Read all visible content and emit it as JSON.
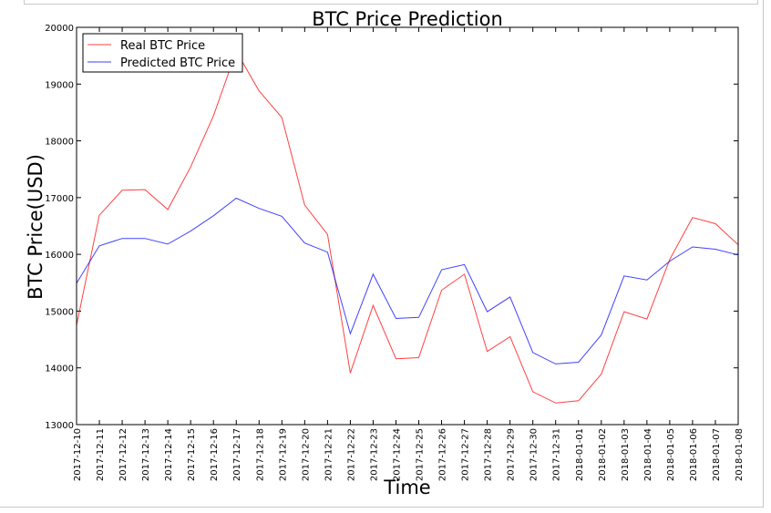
{
  "chart_data": {
    "type": "line",
    "title": "BTC Price Prediction",
    "xlabel": "Time",
    "ylabel": "BTC Price(USD)",
    "ylim": [
      13000,
      20000
    ],
    "yticks": [
      13000,
      14000,
      15000,
      16000,
      17000,
      18000,
      19000,
      20000
    ],
    "legend_position": "top-left",
    "grid": false,
    "categories": [
      "2017-12-10",
      "2017-12-11",
      "2017-12-12",
      "2017-12-13",
      "2017-12-14",
      "2017-12-15",
      "2017-12-16",
      "2017-12-17",
      "2017-12-18",
      "2017-12-19",
      "2017-12-20",
      "2017-12-21",
      "2017-12-22",
      "2017-12-23",
      "2017-12-24",
      "2017-12-25",
      "2017-12-26",
      "2017-12-27",
      "2017-12-28",
      "2017-12-29",
      "2017-12-30",
      "2017-12-31",
      "2018-01-01",
      "2018-01-02",
      "2018-01-03",
      "2018-01-04",
      "2018-01-05",
      "2018-01-06",
      "2018-01-07",
      "2018-01-08"
    ],
    "series": [
      {
        "name": "Real BTC Price",
        "color": "#ff0000",
        "values": [
          14750,
          16690,
          17130,
          17140,
          16790,
          17540,
          18440,
          19580,
          18880,
          18410,
          16870,
          16350,
          13910,
          15100,
          14160,
          14180,
          15370,
          15650,
          14290,
          14550,
          13580,
          13380,
          13420,
          13890,
          14990,
          14860,
          15910,
          16650,
          16540,
          16170
        ]
      },
      {
        "name": "Predicted BTC Price",
        "color": "#0000ff",
        "values": [
          15490,
          16150,
          16280,
          16280,
          16180,
          16410,
          16680,
          16990,
          16810,
          16670,
          16200,
          16040,
          14600,
          15650,
          14870,
          14890,
          15730,
          15820,
          14990,
          15250,
          14270,
          14070,
          14100,
          14580,
          15620,
          15550,
          15880,
          16130,
          16090,
          15990
        ]
      }
    ]
  }
}
